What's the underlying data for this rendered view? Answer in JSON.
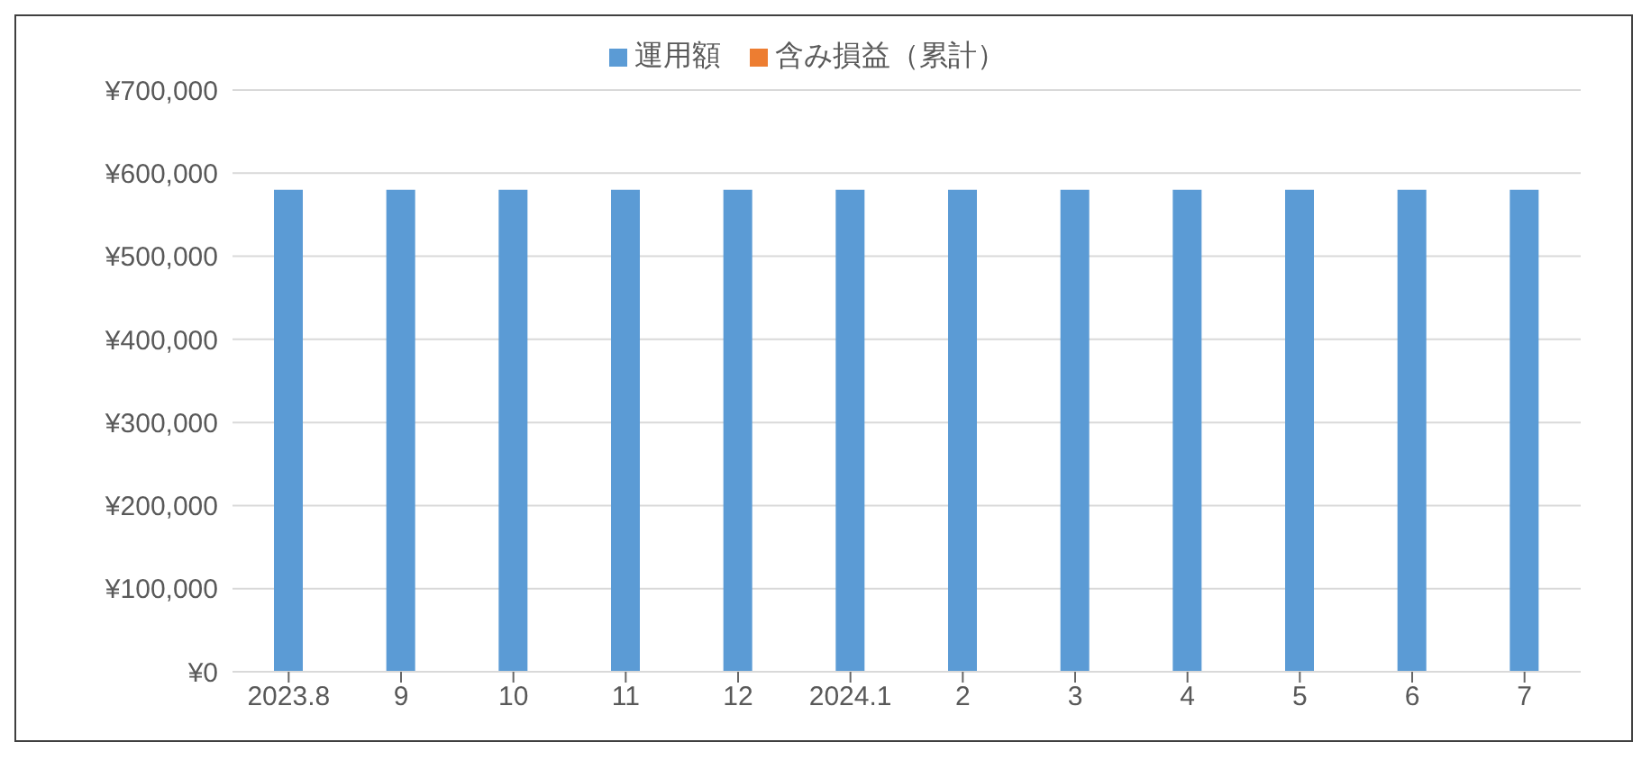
{
  "chart_data": {
    "type": "bar",
    "stacked": true,
    "categories": [
      "2023.8",
      "9",
      "10",
      "11",
      "12",
      "2024.1",
      "2",
      "3",
      "4",
      "5",
      "6",
      "7"
    ],
    "series": [
      {
        "name": "運用額",
        "color": "#5b9bd5",
        "values": [
          580000,
          580000,
          580000,
          580000,
          580000,
          580000,
          580000,
          580000,
          580000,
          580000,
          580000,
          580000
        ]
      },
      {
        "name": "含み損益（累計）",
        "color": "#ed7d31",
        "values": [
          0,
          0,
          0,
          0,
          0,
          0,
          0,
          0,
          0,
          0,
          0,
          0
        ]
      }
    ],
    "ylim": [
      0,
      700000
    ],
    "yticks": [
      {
        "value": 0,
        "label": "¥0"
      },
      {
        "value": 100000,
        "label": "¥100,000"
      },
      {
        "value": 200000,
        "label": "¥200,000"
      },
      {
        "value": 300000,
        "label": "¥300,000"
      },
      {
        "value": 400000,
        "label": "¥400,000"
      },
      {
        "value": 500000,
        "label": "¥500,000"
      },
      {
        "value": 600000,
        "label": "¥600,000"
      },
      {
        "value": 700000,
        "label": "¥700,000"
      }
    ],
    "grid": "y",
    "legend": "top"
  }
}
